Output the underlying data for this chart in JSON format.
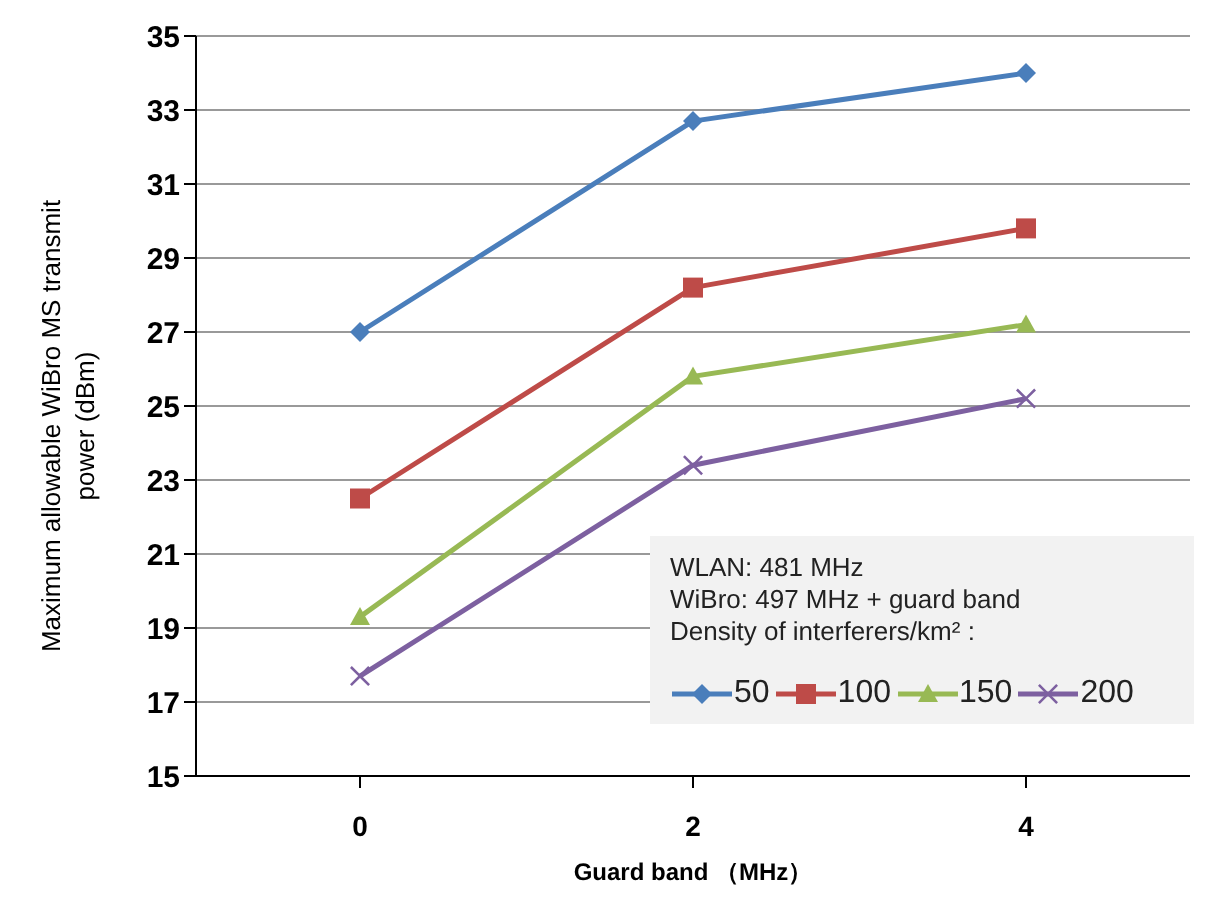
{
  "chart_data": {
    "type": "line",
    "xlabel": "Guard band （MHz）",
    "ylabel": "Maximum allowable WiBro MS transmit power (dBm)",
    "legend_title": "WLAN: 481 MHz\nWiBro: 497 MHz + guard band\nDensity of interferers/km² :",
    "categories": [
      "0",
      "2",
      "4"
    ],
    "series": [
      {
        "name": "50",
        "color": "#4a7ebb",
        "marker": "diamond",
        "values": [
          27.0,
          32.7,
          34.0
        ]
      },
      {
        "name": "100",
        "color": "#be4b48",
        "marker": "square",
        "values": [
          22.5,
          28.2,
          29.8
        ]
      },
      {
        "name": "150",
        "color": "#98b954",
        "marker": "triangle",
        "values": [
          19.3,
          25.8,
          27.2
        ]
      },
      {
        "name": "200",
        "color": "#7d60a0",
        "marker": "cross",
        "values": [
          17.7,
          23.4,
          25.2
        ]
      }
    ],
    "ylim": [
      15,
      35
    ],
    "yticks": [
      15,
      17,
      19,
      21,
      23,
      25,
      27,
      29,
      31,
      33,
      35
    ],
    "grid": "y",
    "legend": "bottom right"
  }
}
